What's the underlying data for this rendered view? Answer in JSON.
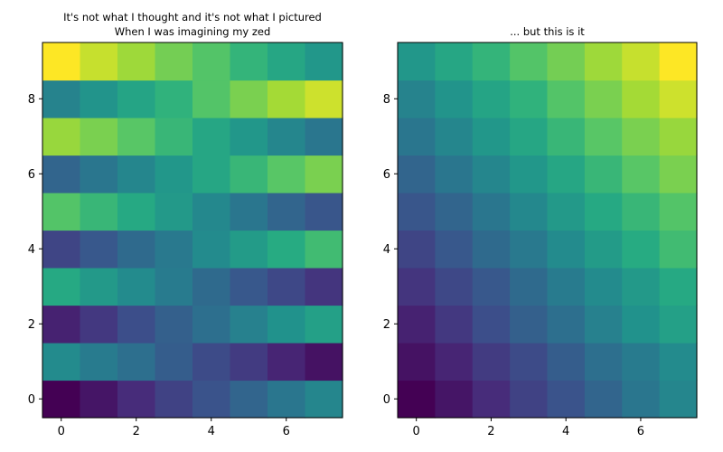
{
  "chart_data": [
    {
      "type": "heatmap",
      "title": [
        "It's not what I thought and it's not what I pictured",
        "When I was imagining my zed"
      ],
      "x": [
        0,
        1,
        2,
        3,
        4,
        5,
        6,
        7
      ],
      "y": [
        0,
        1,
        2,
        3,
        4,
        5,
        6,
        7,
        8,
        9
      ],
      "xticks": [
        0,
        2,
        4,
        6
      ],
      "yticks": [
        0,
        2,
        4,
        6,
        8
      ],
      "xlim": [
        -0.5,
        7.5
      ],
      "ylim": [
        -0.5,
        9.5
      ],
      "colormap": "viridis",
      "zlim": [
        0,
        1
      ],
      "z": [
        [
          0.0,
          0.06,
          0.13,
          0.2,
          0.26,
          0.33,
          0.4,
          0.46
        ],
        [
          0.48,
          0.42,
          0.37,
          0.3,
          0.23,
          0.18,
          0.11,
          0.05
        ],
        [
          0.1,
          0.17,
          0.24,
          0.31,
          0.37,
          0.44,
          0.51,
          0.57
        ],
        [
          0.61,
          0.54,
          0.48,
          0.42,
          0.35,
          0.28,
          0.22,
          0.16
        ],
        [
          0.21,
          0.28,
          0.35,
          0.41,
          0.48,
          0.55,
          0.62,
          0.69
        ],
        [
          0.73,
          0.67,
          0.61,
          0.54,
          0.47,
          0.4,
          0.33,
          0.27
        ],
        [
          0.33,
          0.4,
          0.46,
          0.53,
          0.6,
          0.67,
          0.74,
          0.8
        ],
        [
          0.85,
          0.8,
          0.74,
          0.67,
          0.6,
          0.53,
          0.46,
          0.4
        ],
        [
          0.45,
          0.52,
          0.59,
          0.65,
          0.73,
          0.8,
          0.87,
          0.93
        ],
        [
          1.0,
          0.92,
          0.86,
          0.79,
          0.73,
          0.66,
          0.6,
          0.53
        ]
      ]
    },
    {
      "type": "heatmap",
      "title": [
        "... but this is it"
      ],
      "x": [
        0,
        1,
        2,
        3,
        4,
        5,
        6,
        7
      ],
      "y": [
        0,
        1,
        2,
        3,
        4,
        5,
        6,
        7,
        8,
        9
      ],
      "xticks": [
        0,
        2,
        4,
        6
      ],
      "yticks": [
        0,
        2,
        4,
        6,
        8
      ],
      "xlim": [
        -0.5,
        7.5
      ],
      "ylim": [
        -0.5,
        9.5
      ],
      "colormap": "viridis",
      "zlim": [
        0,
        1
      ],
      "z": [
        [
          0.0,
          0.06,
          0.13,
          0.2,
          0.26,
          0.33,
          0.4,
          0.46
        ],
        [
          0.05,
          0.11,
          0.18,
          0.23,
          0.3,
          0.37,
          0.42,
          0.48
        ],
        [
          0.1,
          0.17,
          0.24,
          0.31,
          0.37,
          0.44,
          0.51,
          0.57
        ],
        [
          0.16,
          0.22,
          0.28,
          0.35,
          0.42,
          0.48,
          0.54,
          0.61
        ],
        [
          0.21,
          0.28,
          0.35,
          0.41,
          0.48,
          0.55,
          0.62,
          0.69
        ],
        [
          0.27,
          0.33,
          0.4,
          0.47,
          0.54,
          0.61,
          0.67,
          0.73
        ],
        [
          0.33,
          0.4,
          0.46,
          0.53,
          0.6,
          0.67,
          0.74,
          0.8
        ],
        [
          0.4,
          0.46,
          0.53,
          0.6,
          0.67,
          0.74,
          0.8,
          0.85
        ],
        [
          0.45,
          0.52,
          0.59,
          0.65,
          0.73,
          0.8,
          0.87,
          0.93
        ],
        [
          0.53,
          0.6,
          0.66,
          0.73,
          0.79,
          0.86,
          0.92,
          1.0
        ]
      ]
    }
  ]
}
